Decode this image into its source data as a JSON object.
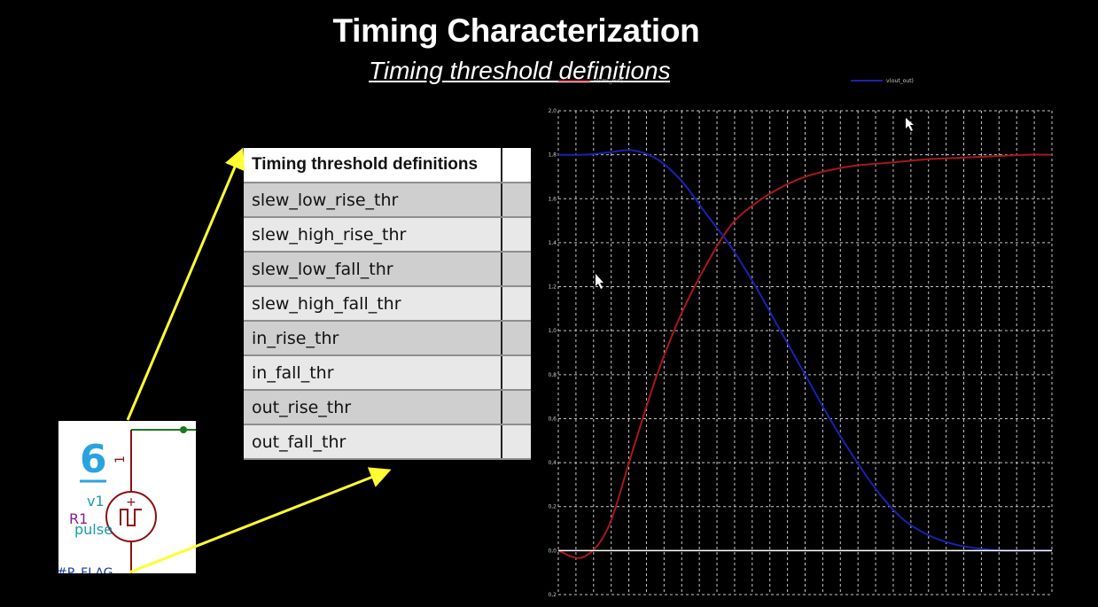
{
  "slide": {
    "title": "Timing Characterization",
    "subtitle": "Timing threshold definitions"
  },
  "table": {
    "header": "Timing threshold definitions",
    "rows": [
      "slew_low_rise_thr",
      "slew_high_rise_thr",
      "slew_low_fall_thr",
      "slew_high_fall_thr",
      "in_rise_thr",
      "in_fall_thr",
      "out_rise_thr",
      "out_fall_thr"
    ]
  },
  "schematic": {
    "number": "6",
    "source_name": "v1",
    "source_type": "pulse",
    "resistor": "R1",
    "pin": "1",
    "flag": "#P_FLAG"
  },
  "colors": {
    "arrow": "#ffff33",
    "accent_blue": "#29a3e0",
    "trace_red": "#a8181b",
    "trace_blue": "#1a22b0",
    "grid": "#cccccc"
  },
  "chart_data": {
    "type": "line",
    "legend_placement": "top",
    "grid": true,
    "ylim": [
      -0.2,
      2.0
    ],
    "yticks": [
      "-0,2",
      "0,0",
      "0,2",
      "0,4",
      "0,6",
      "0,8",
      "1,0",
      "1,2",
      "1,4",
      "1,6",
      "1,8",
      "2,0"
    ],
    "x": [
      0,
      0.05,
      0.1,
      0.15,
      0.2,
      0.25,
      0.3,
      0.35,
      0.4,
      0.45,
      0.5,
      0.55,
      0.6,
      0.65,
      0.7,
      0.75,
      0.8,
      0.85,
      0.9,
      0.95,
      1.0
    ],
    "xlim": [
      0,
      1
    ],
    "series": [
      {
        "name": "v(cmr_out)",
        "color": "#a8181b",
        "values": [
          0.0,
          -0.03,
          0.1,
          0.45,
          0.8,
          1.08,
          1.3,
          1.48,
          1.58,
          1.65,
          1.7,
          1.73,
          1.75,
          1.76,
          1.77,
          1.78,
          1.785,
          1.79,
          1.795,
          1.8,
          1.8
        ]
      },
      {
        "name": "v(out_out)",
        "color": "#1a22b0",
        "values": [
          1.8,
          1.8,
          1.81,
          1.82,
          1.78,
          1.68,
          1.53,
          1.38,
          1.2,
          1.0,
          0.8,
          0.6,
          0.42,
          0.26,
          0.14,
          0.07,
          0.03,
          0.01,
          0.0,
          0.0,
          0.0
        ]
      },
      {
        "name": "",
        "color": "#ffffff",
        "values": [
          0,
          0,
          0,
          0,
          0,
          0,
          0,
          0,
          0,
          0,
          0,
          0,
          0,
          0,
          0,
          0,
          0,
          0,
          0,
          0,
          0
        ]
      }
    ]
  }
}
